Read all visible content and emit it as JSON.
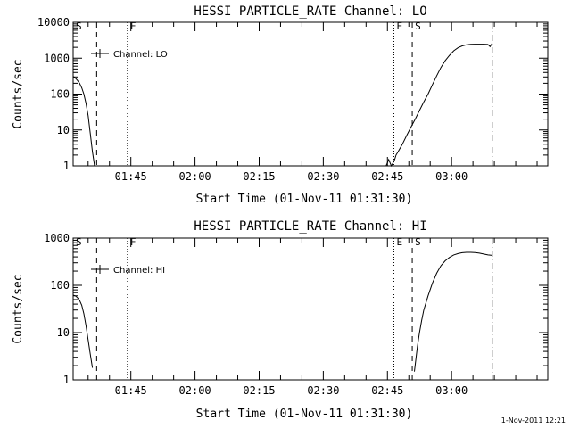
{
  "timestamp": "1-Nov-2011 12:21",
  "chart_data": [
    {
      "type": "line",
      "title": "HESSI PARTICLE_RATE Channel: LO",
      "xlabel": "Start Time (01-Nov-11 01:31:30)",
      "ylabel": "Counts/sec",
      "legend": "Channel: LO",
      "legend_placement": "top-left",
      "x_unit": "minutes",
      "xlim": [
        0,
        111
      ],
      "yscale": "log",
      "ylim": [
        1,
        10000
      ],
      "ytick_values": [
        1,
        10,
        100,
        1000,
        10000
      ],
      "ytick_labels": [
        "1",
        "10",
        "100",
        "1000",
        "10000"
      ],
      "xtick_values": [
        13.5,
        28.5,
        43.5,
        58.5,
        73.5,
        88.5
      ],
      "xtick_labels": [
        "01:45",
        "02:00",
        "02:15",
        "02:30",
        "02:45",
        "03:00"
      ],
      "markers": [
        {
          "label": "S",
          "x": 0,
          "style": "dashed"
        },
        {
          "label": "",
          "x": 5.5,
          "style": "dashed"
        },
        {
          "label": "F",
          "x": 12.7,
          "style": "dotted"
        },
        {
          "label": "E",
          "x": 75.0,
          "style": "dotted"
        },
        {
          "label": "S",
          "x": 79.3,
          "style": "dashed"
        },
        {
          "label": "",
          "x": 98.0,
          "style": "dashdot"
        }
      ],
      "series": [
        {
          "segments": [
            {
              "x": [
                0,
                0.5,
                1,
                1.5,
                2,
                2.5,
                3,
                3.5,
                4,
                4.5,
                5
              ],
              "y": [
                310,
                280,
                240,
                200,
                150,
                100,
                55,
                25,
                8,
                2.5,
                1
              ]
            },
            {
              "x": [
                73.2,
                73.8,
                74.4,
                74.8,
                75.2,
                75.5,
                76,
                77,
                78,
                79,
                80,
                81,
                82,
                83,
                84,
                85,
                86,
                87,
                88,
                89,
                90,
                91,
                92,
                93,
                94,
                95,
                96,
                97,
                97.5,
                98
              ],
              "y": [
                1,
                1.5,
                1,
                1.2,
                1.5,
                2,
                2.5,
                4,
                7,
                12,
                20,
                35,
                60,
                100,
                180,
                320,
                550,
                850,
                1200,
                1600,
                1950,
                2200,
                2350,
                2420,
                2450,
                2450,
                2450,
                2400,
                2100,
                2600
              ]
            }
          ]
        }
      ]
    },
    {
      "type": "line",
      "title": "HESSI PARTICLE_RATE Channel: HI",
      "xlabel": "Start Time (01-Nov-11 01:31:30)",
      "ylabel": "Counts/sec",
      "legend": "Channel: HI",
      "legend_placement": "top-left",
      "x_unit": "minutes",
      "xlim": [
        0,
        111
      ],
      "yscale": "log",
      "ylim": [
        1,
        1000
      ],
      "ytick_values": [
        1,
        10,
        100,
        1000
      ],
      "ytick_labels": [
        "1",
        "10",
        "100",
        "1000"
      ],
      "xtick_values": [
        13.5,
        28.5,
        43.5,
        58.5,
        73.5,
        88.5
      ],
      "xtick_labels": [
        "01:45",
        "02:00",
        "02:15",
        "02:30",
        "02:45",
        "03:00"
      ],
      "markers": [
        {
          "label": "S",
          "x": 0,
          "style": "dashed"
        },
        {
          "label": "",
          "x": 5.5,
          "style": "dashed"
        },
        {
          "label": "F",
          "x": 12.7,
          "style": "dotted"
        },
        {
          "label": "E",
          "x": 75.0,
          "style": "dotted"
        },
        {
          "label": "S",
          "x": 79.3,
          "style": "dashed"
        },
        {
          "label": "",
          "x": 98.0,
          "style": "dashdot"
        }
      ],
      "series": [
        {
          "segments": [
            {
              "x": [
                0,
                0.5,
                1,
                1.5,
                2,
                2.5,
                3,
                3.5,
                4,
                4.5
              ],
              "y": [
                62,
                60,
                55,
                48,
                38,
                25,
                14,
                7,
                3.5,
                1.8
              ]
            },
            {
              "x": [
                79.8,
                80.1,
                80.5,
                81,
                81.5,
                82,
                83,
                84,
                85,
                86,
                87,
                88,
                89,
                90,
                91,
                92,
                93,
                94,
                95,
                96,
                97,
                98
              ],
              "y": [
                1.5,
                2.5,
                5,
                10,
                18,
                30,
                60,
                110,
                180,
                260,
                330,
                390,
                440,
                470,
                490,
                500,
                500,
                495,
                480,
                460,
                440,
                430
              ]
            }
          ]
        }
      ]
    }
  ]
}
